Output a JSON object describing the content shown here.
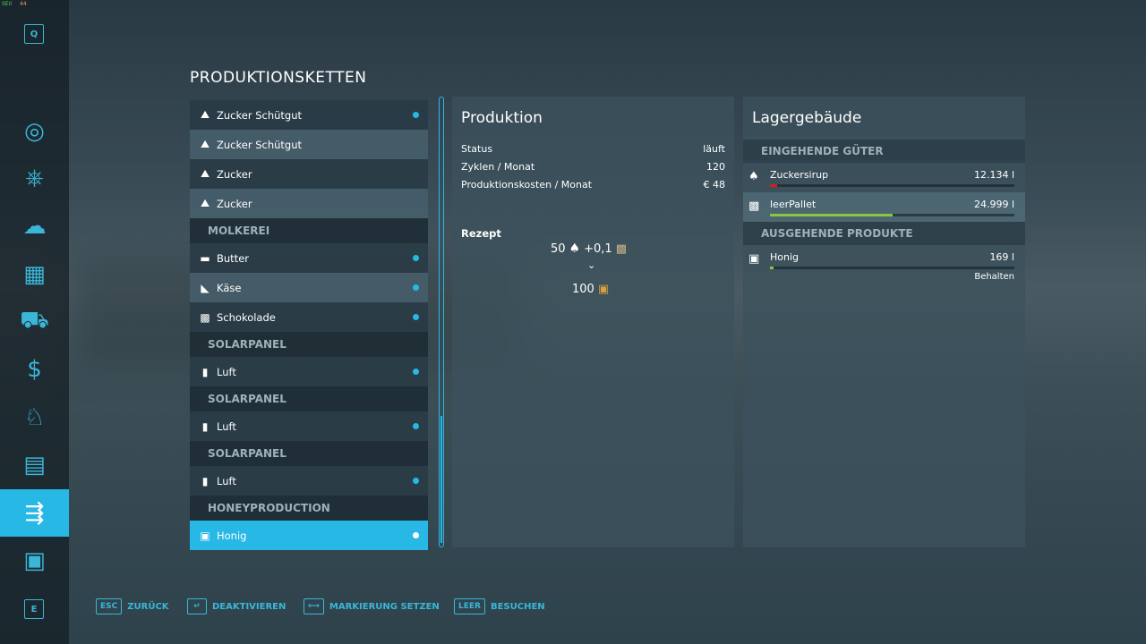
{
  "debug": {
    "a": "SEII",
    "b": "44"
  },
  "sidebar": {
    "top_key": "Q",
    "bottom_key": "E",
    "items": [
      {
        "icon": "map-globe-icon",
        "glyph": "◎"
      },
      {
        "icon": "steering-wheel-icon",
        "glyph": "⎈"
      },
      {
        "icon": "weather-icon",
        "glyph": "☁"
      },
      {
        "icon": "statistics-icon",
        "glyph": "▦"
      },
      {
        "icon": "tractor-icon",
        "glyph": "⛟"
      },
      {
        "icon": "money-icon",
        "glyph": "$"
      },
      {
        "icon": "animals-icon",
        "glyph": "♘"
      },
      {
        "icon": "contracts-icon",
        "glyph": "▤"
      },
      {
        "icon": "production-icon",
        "glyph": "⇶"
      },
      {
        "icon": "help-icon",
        "glyph": "▣"
      }
    ]
  },
  "title": "PRODUKTIONSKETTEN",
  "list": [
    {
      "type": "item",
      "label": "Zucker Schütgut",
      "icon": "⛰",
      "dot": true
    },
    {
      "type": "item",
      "label": "Zucker Schütgut",
      "icon": "⛰",
      "dot": false
    },
    {
      "type": "item",
      "label": "Zucker",
      "icon": "⛰",
      "dot": false
    },
    {
      "type": "item",
      "label": "Zucker",
      "icon": "⛰",
      "dot": false
    },
    {
      "type": "header",
      "label": "MOLKEREI"
    },
    {
      "type": "item",
      "label": "Butter",
      "icon": "▬",
      "dot": true
    },
    {
      "type": "item",
      "label": "Käse",
      "icon": "◣",
      "dot": true
    },
    {
      "type": "item",
      "label": "Schokolade",
      "icon": "▩",
      "dot": true
    },
    {
      "type": "header",
      "label": "SOLARPANEL"
    },
    {
      "type": "item",
      "label": "Luft",
      "icon": "▮",
      "dot": true
    },
    {
      "type": "header",
      "label": "SOLARPANEL"
    },
    {
      "type": "item",
      "label": "Luft",
      "icon": "▮",
      "dot": true
    },
    {
      "type": "header",
      "label": "SOLARPANEL"
    },
    {
      "type": "item",
      "label": "Luft",
      "icon": "▮",
      "dot": true
    },
    {
      "type": "header",
      "label": "HONEYPRODUCTION"
    },
    {
      "type": "item",
      "label": "Honig",
      "icon": "▣",
      "dot": true,
      "selected": true
    }
  ],
  "production": {
    "title": "Produktion",
    "rows": [
      {
        "k": "Status",
        "v": "läuft"
      },
      {
        "k": "Zyklen / Monat",
        "v": "120"
      },
      {
        "k": "Produktionskosten / Monat",
        "v": "€ 48"
      }
    ],
    "recipe_label": "Rezept",
    "in1_amount": "50",
    "in2_amount": "+0,1",
    "out_amount": "100"
  },
  "storage": {
    "title": "Lagergebäude",
    "incoming_label": "EINGEHENDE GÜTER",
    "outgoing_label": "AUSGEHENDE PRODUKTE",
    "incoming": [
      {
        "name": "Zuckersirup",
        "value": "12.134 l",
        "fill": 0.03,
        "color": "#d02020"
      },
      {
        "name": "leerPallet",
        "value": "24.999 l",
        "fill": 0.5,
        "color": "#8cc63f"
      }
    ],
    "outgoing": [
      {
        "name": "Honig",
        "value": "169 l",
        "fill": 0.01,
        "color": "#8cc63f",
        "mode": "Behalten"
      }
    ]
  },
  "footer": [
    {
      "key": "ESC",
      "label": "ZURÜCK"
    },
    {
      "key": "↵",
      "label": "DEAKTIVIEREN"
    },
    {
      "key": "⟷",
      "label": "MARKIERUNG SETZEN"
    },
    {
      "key": "LEER",
      "label": "BESUCHEN"
    }
  ]
}
